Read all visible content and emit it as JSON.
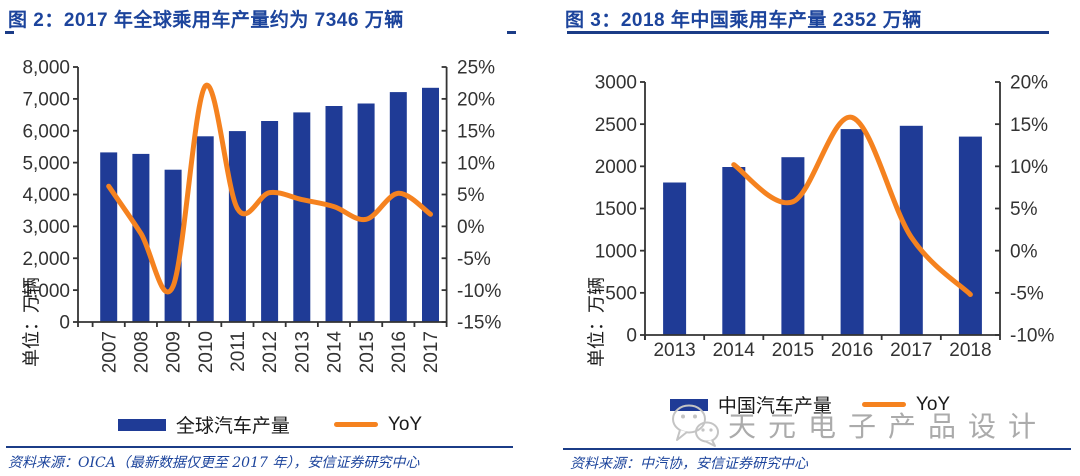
{
  "colors": {
    "bar": "#1F3B96",
    "line": "#F5821F",
    "title": "#1C449C",
    "rule": "#1B3C87",
    "axis": "#333333",
    "watermark": "#ABABAB"
  },
  "panels": [
    {
      "title": "图 2：2017 年全球乘用车产量约为 7346 万辆",
      "legend": {
        "bar_label": "全球汽车产量",
        "line_label": "YoY"
      },
      "source": "资料来源：OICA（最新数据仅更至 2017 年），安信证券研究中心"
    },
    {
      "title": "图 3：2018 年中国乘用车产量 2352 万辆",
      "legend": {
        "bar_label": "中国汽车产量",
        "line_label": "YoY"
      },
      "source": "资料来源：中汽协，安信证券研究中心",
      "watermark": "天元电子产品设计"
    }
  ],
  "chart_data": [
    {
      "type": "bar",
      "subtype": "bar+line-dual-axis",
      "title": "2017 年全球乘用车产量约为 7346 万辆",
      "categories": [
        "2007",
        "2008",
        "2009",
        "2010",
        "2011",
        "2012",
        "2013",
        "2014",
        "2015",
        "2016",
        "2017"
      ],
      "series": [
        {
          "name": "全球汽车产量",
          "type": "bar",
          "axis": "left",
          "unit": "万辆",
          "values": [
            5320,
            5273,
            4777,
            5826,
            5990,
            6307,
            6575,
            6778,
            6854,
            7211,
            7346
          ]
        },
        {
          "name": "YoY",
          "type": "line",
          "axis": "right",
          "unit": "%",
          "values": [
            6.3,
            -1.1,
            -9.4,
            22.0,
            2.8,
            5.3,
            4.2,
            3.1,
            1.1,
            5.2,
            1.9
          ]
        }
      ],
      "left_axis": {
        "label": "单位：万辆",
        "min": 0,
        "max": 8000,
        "step": 1000,
        "thousands_separator": true
      },
      "right_axis": {
        "min": -15,
        "max": 25,
        "step": 5,
        "suffix": "%"
      },
      "x_labels_rotated": true,
      "grid": false,
      "legend_position": "bottom"
    },
    {
      "type": "bar",
      "subtype": "bar+line-dual-axis",
      "title": "2018 年中国乘用车产量 2352 万辆",
      "categories": [
        "2013",
        "2014",
        "2015",
        "2016",
        "2017",
        "2018"
      ],
      "series": [
        {
          "name": "中国汽车产量",
          "type": "bar",
          "axis": "left",
          "unit": "万辆",
          "values": [
            1808,
            1992,
            2108,
            2442,
            2481,
            2352
          ]
        },
        {
          "name": "YoY",
          "type": "line",
          "axis": "right",
          "unit": "%",
          "values": [
            null,
            10.2,
            5.8,
            15.8,
            1.6,
            -5.2
          ]
        }
      ],
      "left_axis": {
        "label": "单位：万辆",
        "min": 0,
        "max": 3000,
        "step": 500,
        "thousands_separator": false
      },
      "right_axis": {
        "min": -10,
        "max": 20,
        "step": 5,
        "suffix": "%"
      },
      "x_labels_rotated": false,
      "grid": false,
      "legend_position": "bottom"
    }
  ]
}
